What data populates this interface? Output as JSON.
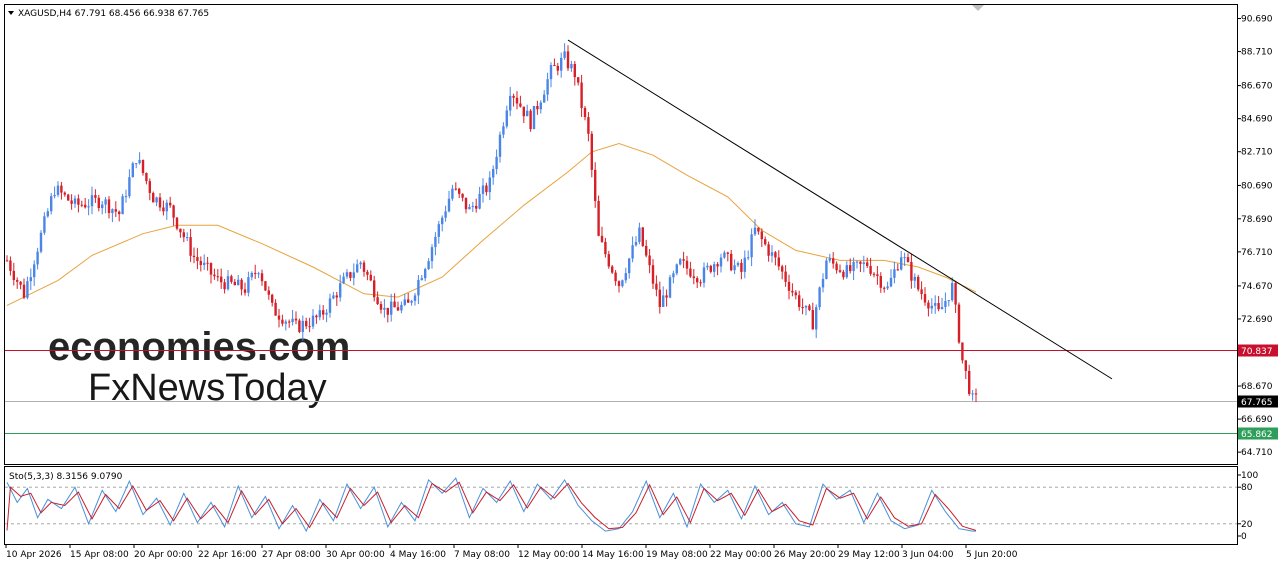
{
  "chart_data": {
    "type": "candlestick",
    "symbol_header": "XAGUSD,H4  67.791 68.456 66.938 67.765",
    "y_ticks": [
      "90.690",
      "88.710",
      "86.670",
      "84.690",
      "82.710",
      "80.690",
      "78.690",
      "76.710",
      "74.670",
      "72.690",
      "68.670",
      "66.690",
      "64.710"
    ],
    "ylim": [
      64.0,
      91.5
    ],
    "x_ticks": [
      "10 Apr 2026",
      "15 Apr 08:00",
      "20 Apr 00:00",
      "22 Apr 16:00",
      "27 Apr 08:00",
      "30 Apr 00:00",
      "4 May 16:00",
      "7 May 08:00",
      "12 May 00:00",
      "14 May 16:00",
      "19 May 08:00",
      "22 May 00:00",
      "26 May 20:00",
      "29 May 12:00",
      "3 Jun 04:00",
      "5 Jun 20:00"
    ],
    "levels": [
      {
        "label": "70.837",
        "value": 70.837,
        "color": "#c8102e"
      },
      {
        "label": "67.765",
        "value": 67.765,
        "color": "#000000"
      },
      {
        "label": "65.862",
        "value": 65.862,
        "color": "#2e9e5b"
      }
    ],
    "waypoints": [
      [
        0,
        76.2
      ],
      [
        5,
        74.2
      ],
      [
        14,
        80.5
      ],
      [
        20,
        79.5
      ],
      [
        28,
        79.8
      ],
      [
        33,
        79
      ],
      [
        38,
        82.4
      ],
      [
        43,
        80
      ],
      [
        48,
        79.3
      ],
      [
        55,
        76.4
      ],
      [
        62,
        75
      ],
      [
        70,
        74.5
      ],
      [
        74,
        75.8
      ],
      [
        78,
        73.3
      ],
      [
        85,
        72.2
      ],
      [
        92,
        72.8
      ],
      [
        99,
        74.9
      ],
      [
        104,
        76.1
      ],
      [
        111,
        73.2
      ],
      [
        118,
        73.5
      ],
      [
        124,
        76.5
      ],
      [
        131,
        80.5
      ],
      [
        136,
        79.2
      ],
      [
        142,
        80.8
      ],
      [
        148,
        86.5
      ],
      [
        154,
        84.5
      ],
      [
        160,
        87.5
      ],
      [
        164,
        88.3
      ],
      [
        167,
        87.4
      ],
      [
        171,
        83.6
      ],
      [
        174,
        77.5
      ],
      [
        180,
        74.8
      ],
      [
        186,
        77.8
      ],
      [
        192,
        73.5
      ],
      [
        198,
        76
      ],
      [
        204,
        75.2
      ],
      [
        210,
        76.5
      ],
      [
        216,
        75.5
      ],
      [
        220,
        78
      ],
      [
        226,
        76.2
      ],
      [
        232,
        74
      ],
      [
        237,
        72.5
      ],
      [
        241,
        76.2
      ],
      [
        247,
        75.5
      ],
      [
        253,
        76
      ],
      [
        259,
        74.5
      ],
      [
        263,
        76.6
      ],
      [
        268,
        74.5
      ],
      [
        274,
        73
      ],
      [
        278,
        74.6
      ],
      [
        281,
        70.2
      ],
      [
        284,
        67.8
      ]
    ],
    "ma_points": [
      [
        0,
        73.5
      ],
      [
        15,
        75
      ],
      [
        25,
        76.5
      ],
      [
        40,
        77.8
      ],
      [
        50,
        78.3
      ],
      [
        62,
        78.3
      ],
      [
        75,
        77.2
      ],
      [
        90,
        75.8
      ],
      [
        105,
        74.2
      ],
      [
        115,
        74
      ],
      [
        128,
        75.2
      ],
      [
        140,
        77.4
      ],
      [
        152,
        79.5
      ],
      [
        165,
        81.5
      ],
      [
        172,
        82.7
      ],
      [
        180,
        83.2
      ],
      [
        190,
        82.5
      ],
      [
        200,
        81.3
      ],
      [
        212,
        80
      ],
      [
        222,
        78
      ],
      [
        232,
        76.8
      ],
      [
        245,
        76.2
      ],
      [
        258,
        76.2
      ],
      [
        268,
        75.8
      ],
      [
        276,
        75.2
      ],
      [
        285,
        74.3
      ]
    ],
    "trendline": [
      [
        165,
        89.4
      ],
      [
        325,
        69.1
      ]
    ],
    "stochastic": {
      "label": "Sto(5,3,3) 8.3156 9.0790",
      "y_ticks": [
        "100",
        "80",
        "20",
        "0"
      ],
      "levels": [
        80,
        20
      ],
      "k_points": [
        [
          0,
          88
        ],
        [
          3,
          55
        ],
        [
          6,
          78
        ],
        [
          9,
          30
        ],
        [
          12,
          60
        ],
        [
          16,
          45
        ],
        [
          20,
          80
        ],
        [
          24,
          20
        ],
        [
          28,
          75
        ],
        [
          32,
          40
        ],
        [
          36,
          90
        ],
        [
          40,
          35
        ],
        [
          44,
          62
        ],
        [
          48,
          18
        ],
        [
          52,
          70
        ],
        [
          56,
          22
        ],
        [
          60,
          55
        ],
        [
          64,
          15
        ],
        [
          68,
          82
        ],
        [
          72,
          30
        ],
        [
          76,
          65
        ],
        [
          80,
          12
        ],
        [
          84,
          50
        ],
        [
          88,
          8
        ],
        [
          92,
          60
        ],
        [
          96,
          25
        ],
        [
          100,
          85
        ],
        [
          104,
          45
        ],
        [
          108,
          80
        ],
        [
          112,
          15
        ],
        [
          116,
          55
        ],
        [
          120,
          25
        ],
        [
          124,
          92
        ],
        [
          128,
          70
        ],
        [
          132,
          95
        ],
        [
          136,
          30
        ],
        [
          140,
          78
        ],
        [
          144,
          55
        ],
        [
          148,
          90
        ],
        [
          152,
          40
        ],
        [
          156,
          85
        ],
        [
          160,
          60
        ],
        [
          164,
          92
        ],
        [
          168,
          50
        ],
        [
          172,
          25
        ],
        [
          176,
          8
        ],
        [
          180,
          12
        ],
        [
          184,
          40
        ],
        [
          188,
          90
        ],
        [
          192,
          30
        ],
        [
          196,
          70
        ],
        [
          200,
          15
        ],
        [
          204,
          85
        ],
        [
          208,
          55
        ],
        [
          212,
          75
        ],
        [
          216,
          28
        ],
        [
          220,
          82
        ],
        [
          224,
          35
        ],
        [
          228,
          55
        ],
        [
          232,
          20
        ],
        [
          236,
          15
        ],
        [
          240,
          85
        ],
        [
          244,
          60
        ],
        [
          248,
          75
        ],
        [
          252,
          22
        ],
        [
          256,
          70
        ],
        [
          260,
          25
        ],
        [
          264,
          12
        ],
        [
          268,
          18
        ],
        [
          272,
          75
        ],
        [
          276,
          40
        ],
        [
          280,
          12
        ],
        [
          284,
          8
        ]
      ],
      "d_points": [
        [
          1,
          80
        ],
        [
          4,
          65
        ],
        [
          7,
          70
        ],
        [
          10,
          38
        ],
        [
          13,
          55
        ],
        [
          17,
          50
        ],
        [
          21,
          72
        ],
        [
          25,
          28
        ],
        [
          29,
          68
        ],
        [
          33,
          45
        ],
        [
          37,
          82
        ],
        [
          41,
          42
        ],
        [
          45,
          58
        ],
        [
          49,
          25
        ],
        [
          53,
          62
        ],
        [
          57,
          28
        ],
        [
          61,
          50
        ],
        [
          65,
          22
        ],
        [
          69,
          74
        ],
        [
          73,
          35
        ],
        [
          77,
          60
        ],
        [
          81,
          20
        ],
        [
          85,
          45
        ],
        [
          89,
          14
        ],
        [
          93,
          54
        ],
        [
          97,
          30
        ],
        [
          101,
          78
        ],
        [
          105,
          50
        ],
        [
          109,
          72
        ],
        [
          113,
          22
        ],
        [
          117,
          50
        ],
        [
          121,
          30
        ],
        [
          125,
          86
        ],
        [
          129,
          72
        ],
        [
          133,
          88
        ],
        [
          137,
          38
        ],
        [
          141,
          72
        ],
        [
          145,
          58
        ],
        [
          149,
          84
        ],
        [
          153,
          46
        ],
        [
          157,
          80
        ],
        [
          161,
          62
        ],
        [
          165,
          86
        ],
        [
          169,
          54
        ],
        [
          173,
          30
        ],
        [
          177,
          12
        ],
        [
          181,
          14
        ],
        [
          185,
          38
        ],
        [
          189,
          84
        ],
        [
          193,
          35
        ],
        [
          197,
          64
        ],
        [
          201,
          22
        ],
        [
          205,
          78
        ],
        [
          209,
          58
        ],
        [
          213,
          70
        ],
        [
          217,
          34
        ],
        [
          221,
          76
        ],
        [
          225,
          40
        ],
        [
          229,
          52
        ],
        [
          233,
          25
        ],
        [
          237,
          18
        ],
        [
          241,
          78
        ],
        [
          245,
          62
        ],
        [
          249,
          70
        ],
        [
          253,
          28
        ],
        [
          257,
          64
        ],
        [
          261,
          30
        ],
        [
          265,
          16
        ],
        [
          269,
          20
        ],
        [
          273,
          68
        ],
        [
          277,
          44
        ],
        [
          281,
          16
        ],
        [
          285,
          9
        ]
      ]
    },
    "watermark": {
      "line1": "economies.com",
      "line2": "FxNewsToday"
    },
    "colors": {
      "bull": "#4a86e8",
      "bear": "#d62027",
      "ma": "#e8a33c",
      "trend": "#000000",
      "sto_k": "#4a90d9",
      "sto_d": "#c81e2a"
    }
  }
}
